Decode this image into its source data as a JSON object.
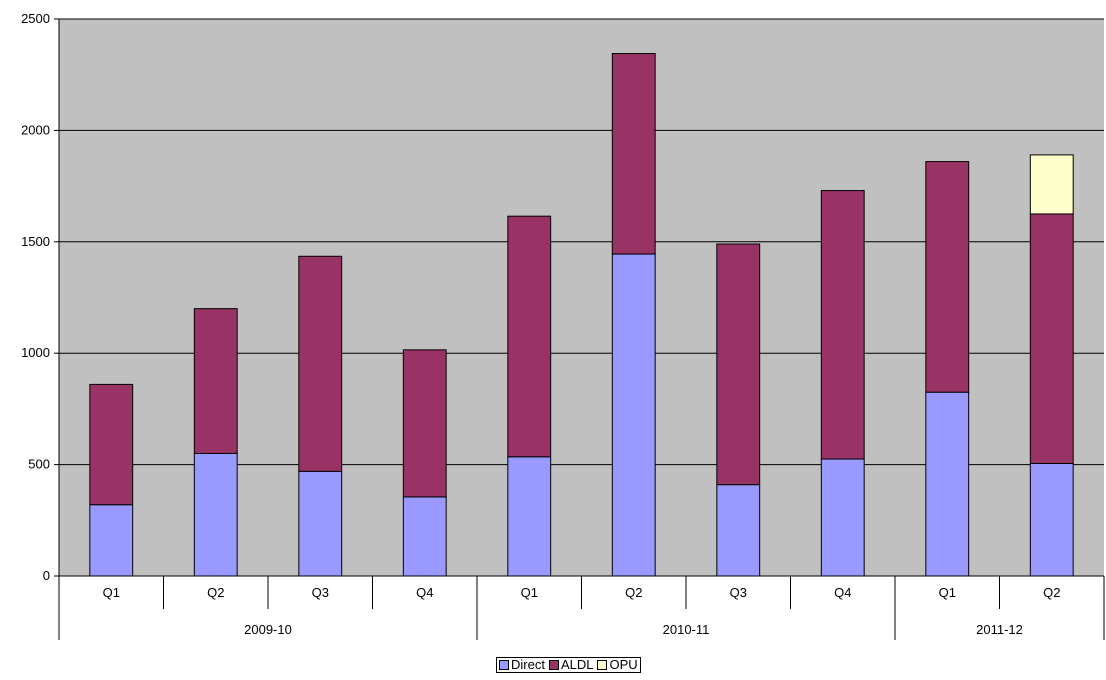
{
  "chart_data": {
    "type": "bar",
    "stacked": true,
    "title": "",
    "xlabel": "",
    "ylabel": "",
    "ylim": [
      0,
      2500
    ],
    "yticks": [
      0,
      500,
      1000,
      1500,
      2000,
      2500
    ],
    "grid": true,
    "legend_position": "bottom",
    "plot_background": "#c0c0c0",
    "categories": [
      "Q1",
      "Q2",
      "Q3",
      "Q4",
      "Q1",
      "Q2",
      "Q3",
      "Q4",
      "Q1",
      "Q2"
    ],
    "groups": [
      {
        "label": "2009-10",
        "count": 4
      },
      {
        "label": "2010-11",
        "count": 4
      },
      {
        "label": "2011-12",
        "count": 2
      }
    ],
    "series": [
      {
        "name": "Direct",
        "color": "#9999ff",
        "values": [
          320,
          550,
          470,
          355,
          535,
          1445,
          410,
          525,
          825,
          505
        ]
      },
      {
        "name": "ALDL",
        "color": "#993366",
        "values": [
          540,
          650,
          965,
          660,
          1080,
          900,
          1080,
          1205,
          1035,
          1120
        ]
      },
      {
        "name": "OPU",
        "color": "#ffffcc",
        "values": [
          0,
          0,
          0,
          0,
          0,
          0,
          0,
          0,
          0,
          265
        ]
      }
    ]
  }
}
